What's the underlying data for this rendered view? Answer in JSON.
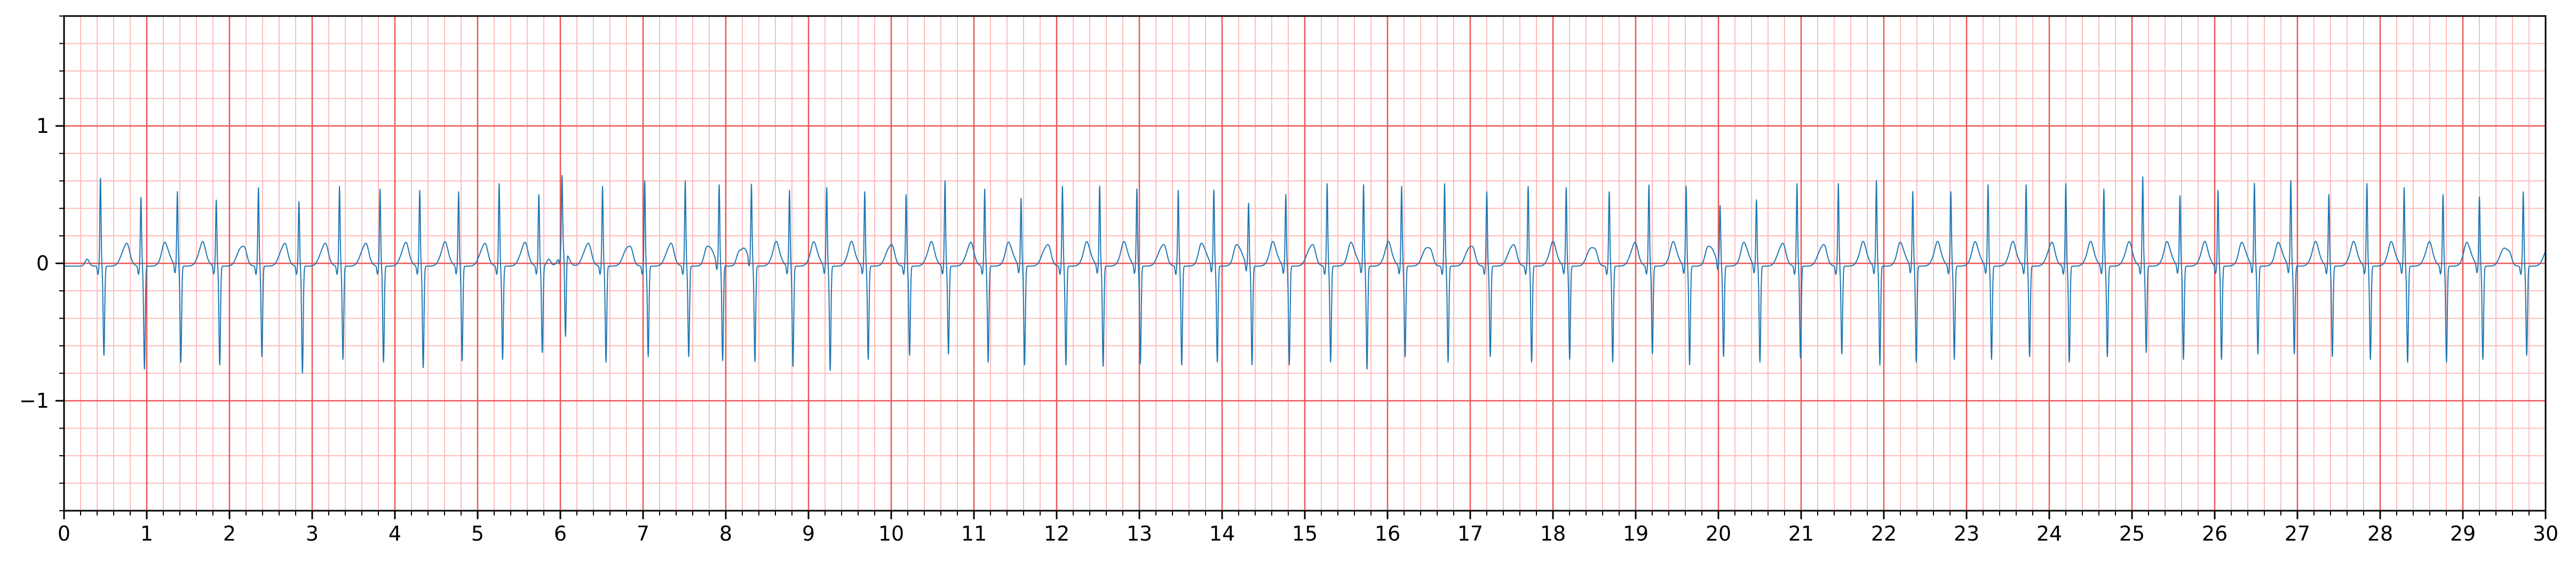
{
  "chart_data": {
    "type": "line",
    "title": "",
    "xlabel": "",
    "ylabel": "",
    "xlim": [
      0,
      30
    ],
    "ylim": [
      -1.8,
      1.8
    ],
    "grid": true,
    "legend": "none",
    "x_ticks": [
      0,
      1,
      2,
      3,
      4,
      5,
      6,
      7,
      8,
      9,
      10,
      11,
      12,
      13,
      14,
      15,
      16,
      17,
      18,
      19,
      20,
      21,
      22,
      23,
      24,
      25,
      26,
      27,
      28,
      29,
      30
    ],
    "y_ticks": [
      1,
      0,
      -1
    ],
    "y_tick_labels": [
      "1",
      "0",
      "−1"
    ],
    "colors": {
      "major_grid": "#ee5555",
      "minor_grid": "#ffbcbc",
      "trace": "#1f77b4"
    },
    "series": [
      {
        "r_peak_times": [
          0.44,
          0.93,
          1.37,
          1.84,
          2.35,
          2.84,
          3.33,
          3.82,
          4.3,
          4.77,
          5.26,
          5.74,
          6.02,
          6.51,
          7.02,
          7.51,
          7.92,
          8.31,
          8.77,
          9.22,
          9.68,
          10.18,
          10.65,
          11.13,
          11.57,
          12.07,
          12.52,
          12.97,
          13.47,
          13.9,
          14.32,
          14.77,
          15.27,
          15.71,
          16.17,
          16.69,
          17.2,
          17.7,
          18.16,
          18.68,
          19.16,
          19.61,
          20.02,
          20.46,
          20.95,
          21.45,
          21.91,
          22.35,
          22.81,
          23.26,
          23.72,
          24.2,
          24.66,
          25.13,
          25.58,
          26.04,
          26.48,
          26.92,
          27.38,
          27.84,
          28.29,
          28.76,
          29.2,
          29.73
        ],
        "r_peak_amplitudes": [
          0.62,
          0.48,
          0.52,
          0.46,
          0.55,
          0.45,
          0.56,
          0.54,
          0.53,
          0.52,
          0.58,
          0.5,
          0.52,
          0.56,
          0.6,
          0.6,
          0.56,
          0.55,
          0.53,
          0.55,
          0.52,
          0.5,
          0.6,
          0.54,
          0.47,
          0.56,
          0.56,
          0.54,
          0.53,
          0.53,
          0.43,
          0.5,
          0.58,
          0.57,
          0.56,
          0.58,
          0.52,
          0.56,
          0.55,
          0.52,
          0.57,
          0.56,
          0.41,
          0.46,
          0.58,
          0.58,
          0.6,
          0.52,
          0.52,
          0.57,
          0.57,
          0.58,
          0.54,
          0.63,
          0.49,
          0.53,
          0.58,
          0.6,
          0.5,
          0.58,
          0.55,
          0.5,
          0.48,
          0.52
        ],
        "s_trough_values": [
          -0.67,
          -0.77,
          -0.72,
          -0.74,
          -0.68,
          -0.8,
          -0.7,
          -0.72,
          -0.76,
          -0.71,
          -0.7,
          -0.65,
          -0.65,
          -0.72,
          -0.68,
          -0.68,
          -0.71,
          -0.72,
          -0.75,
          -0.78,
          -0.7,
          -0.67,
          -0.66,
          -0.72,
          -0.74,
          -0.74,
          -0.75,
          -0.73,
          -0.74,
          -0.72,
          -0.74,
          -0.74,
          -0.72,
          -0.77,
          -0.68,
          -0.72,
          -0.68,
          -0.72,
          -0.7,
          -0.72,
          -0.66,
          -0.74,
          -0.68,
          -0.72,
          -0.69,
          -0.66,
          -0.74,
          -0.72,
          -0.7,
          -0.7,
          -0.68,
          -0.72,
          -0.68,
          -0.65,
          -0.7,
          -0.7,
          -0.66,
          -0.66,
          -0.68,
          -0.7,
          -0.72,
          -0.72,
          -0.7,
          -0.67
        ],
        "t_wave_amplitude": 0.13,
        "baseline": -0.02
      }
    ]
  }
}
